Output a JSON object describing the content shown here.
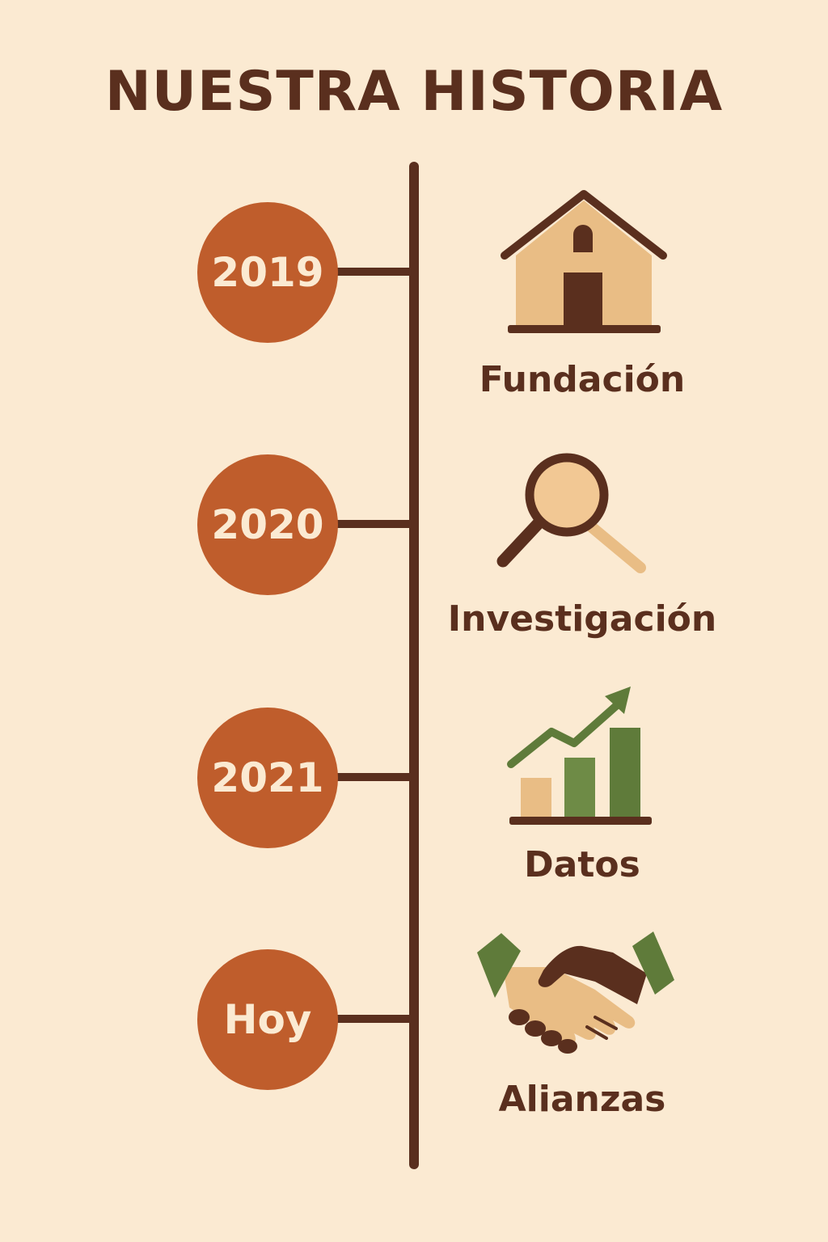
{
  "title": "NUESTRA HISTORIA",
  "colors": {
    "background": "#FBEAD2",
    "dark_brown": "#5A2F1E",
    "orange": "#BF5D2C",
    "tan": "#E9BD85",
    "green": "#5F7B3A"
  },
  "milestones": [
    {
      "year": "2019",
      "label": "Fundación",
      "icon": "house-icon"
    },
    {
      "year": "2020",
      "label": "Investigación",
      "icon": "magnifier-icon"
    },
    {
      "year": "2021",
      "label": "Datos",
      "icon": "growth-chart-icon"
    },
    {
      "year": "Hoy",
      "label": "Alianzas",
      "icon": "handshake-icon"
    }
  ]
}
